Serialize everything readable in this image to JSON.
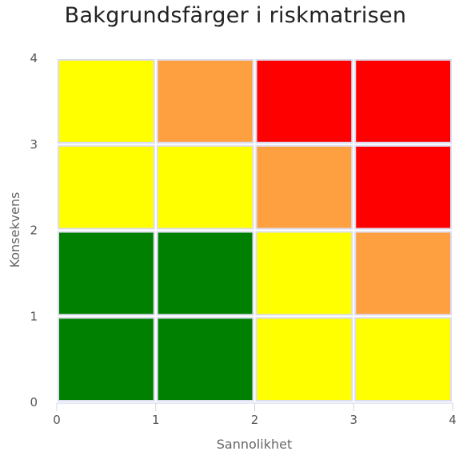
{
  "chart_data": {
    "type": "heatmap",
    "title": "Bakgrundsfärger i riskmatrisen",
    "xlabel": "Sannolikhet",
    "ylabel": "Konsekvens",
    "xlim": [
      0,
      4
    ],
    "ylim": [
      0,
      4
    ],
    "x_ticks": [
      "0",
      "1",
      "2",
      "3",
      "4"
    ],
    "y_ticks": [
      "0",
      "1",
      "2",
      "3",
      "4"
    ],
    "colors": {
      "green": "#008000",
      "yellow": "#ffff00",
      "orange": "#ffa040",
      "red": "#ff0000",
      "cell_border": "#dcdcf0"
    },
    "cells": [
      {
        "x": 0,
        "y": 0,
        "color": "green"
      },
      {
        "x": 1,
        "y": 0,
        "color": "green"
      },
      {
        "x": 2,
        "y": 0,
        "color": "yellow"
      },
      {
        "x": 3,
        "y": 0,
        "color": "yellow"
      },
      {
        "x": 0,
        "y": 1,
        "color": "green"
      },
      {
        "x": 1,
        "y": 1,
        "color": "green"
      },
      {
        "x": 2,
        "y": 1,
        "color": "yellow"
      },
      {
        "x": 3,
        "y": 1,
        "color": "orange"
      },
      {
        "x": 0,
        "y": 2,
        "color": "yellow"
      },
      {
        "x": 1,
        "y": 2,
        "color": "yellow"
      },
      {
        "x": 2,
        "y": 2,
        "color": "orange"
      },
      {
        "x": 3,
        "y": 2,
        "color": "red"
      },
      {
        "x": 0,
        "y": 3,
        "color": "yellow"
      },
      {
        "x": 1,
        "y": 3,
        "color": "orange"
      },
      {
        "x": 2,
        "y": 3,
        "color": "red"
      },
      {
        "x": 3,
        "y": 3,
        "color": "red"
      }
    ]
  }
}
